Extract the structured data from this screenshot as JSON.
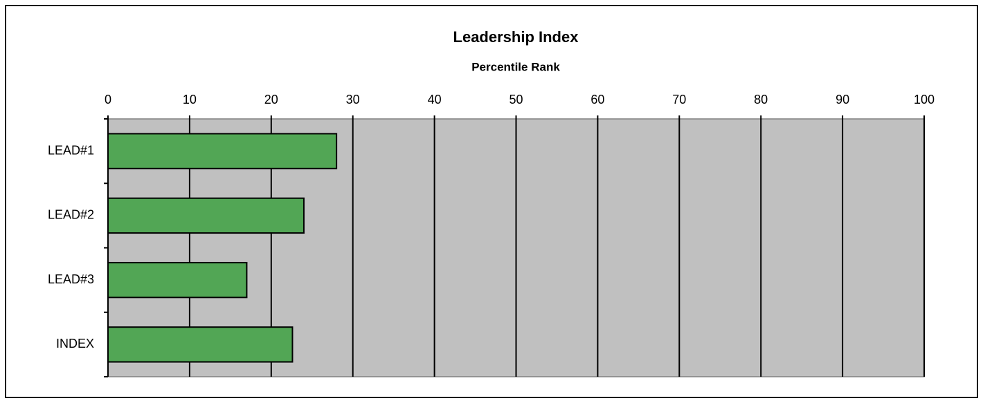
{
  "chart_data": {
    "type": "bar",
    "orientation": "horizontal",
    "title": "Leadership Index",
    "subtitle": "Percentile Rank",
    "categories": [
      "LEAD#1",
      "LEAD#2",
      "LEAD#3",
      "INDEX"
    ],
    "values": [
      28,
      24,
      17,
      22.6
    ],
    "color": "#52a655",
    "plot_background": "#c0c0c0",
    "xlim": [
      0,
      100
    ],
    "xticks": [
      0,
      10,
      20,
      30,
      40,
      50,
      60,
      70,
      80,
      90,
      100
    ],
    "grid": true
  }
}
